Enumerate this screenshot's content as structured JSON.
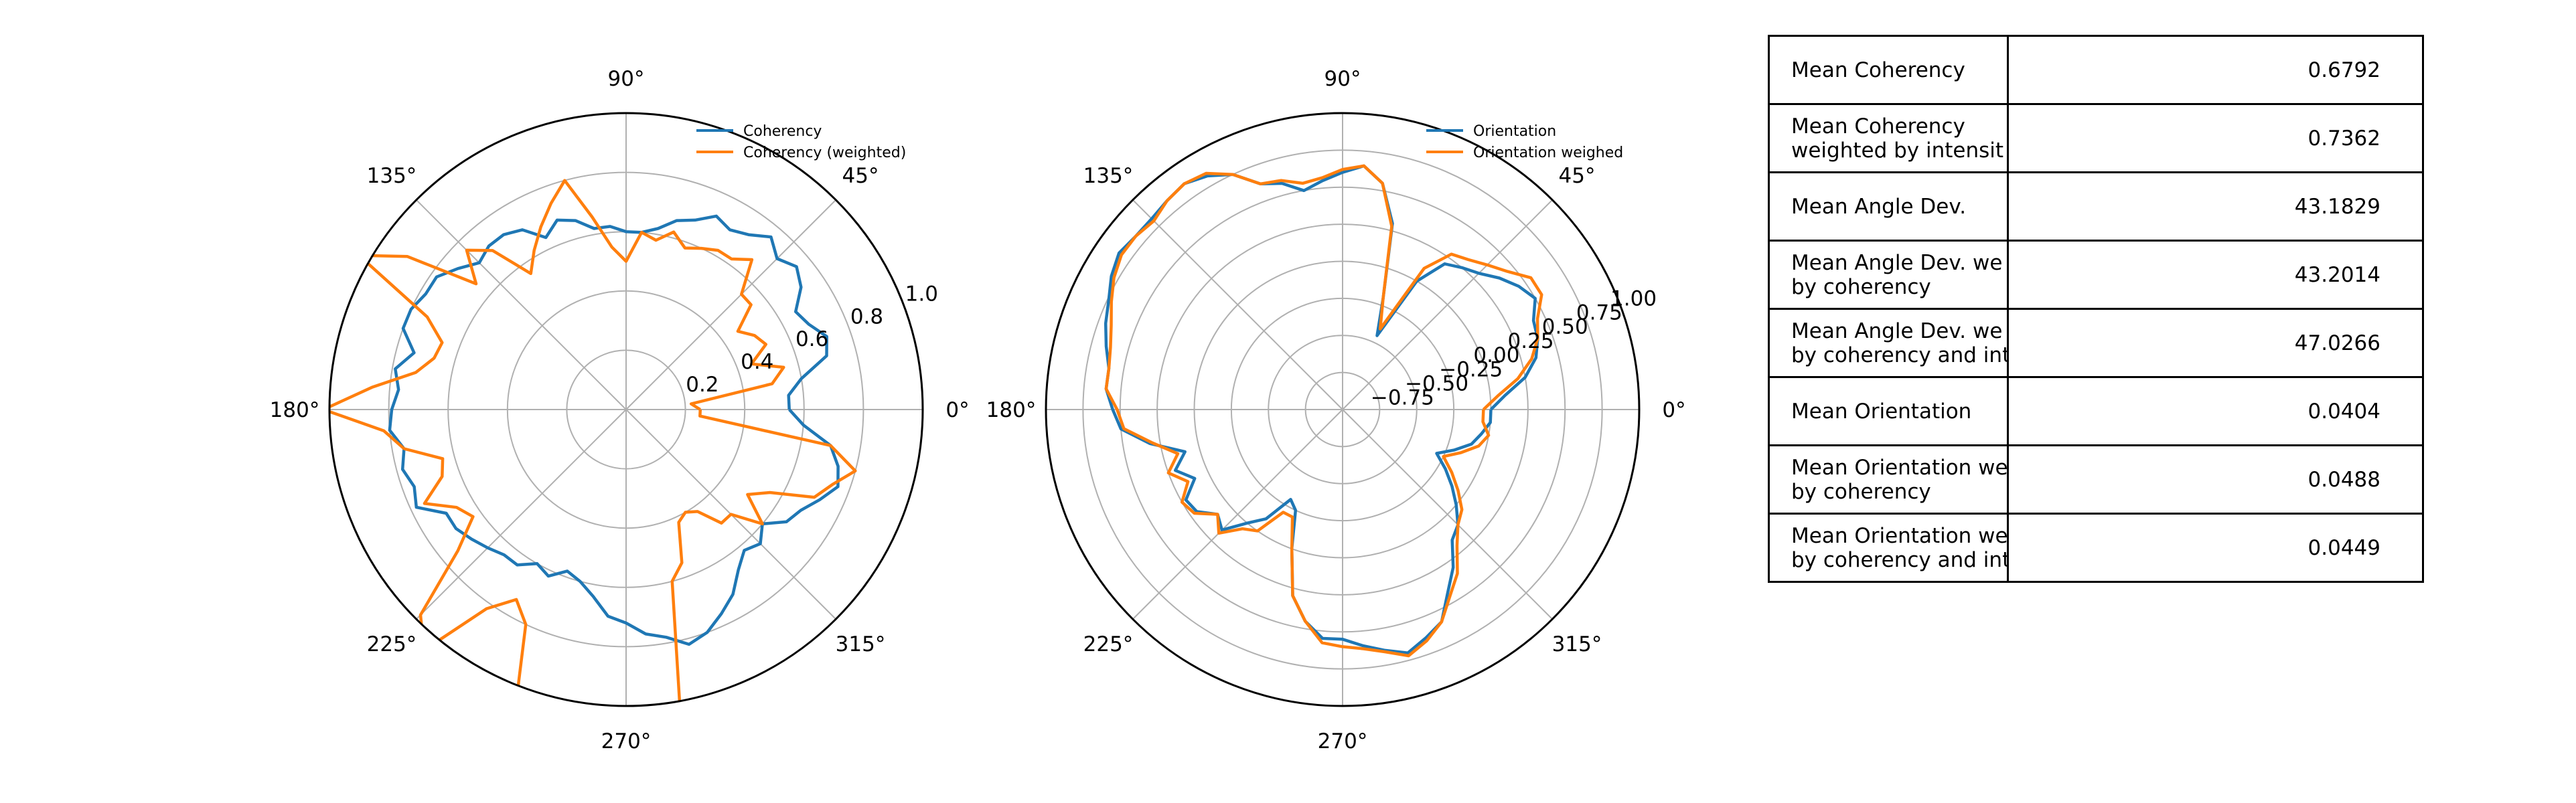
{
  "chart_data": [
    {
      "type": "line",
      "subtype": "polar",
      "title": "",
      "angular_tick_labels": [
        "0°",
        "45°",
        "90°",
        "135°",
        "180°",
        "225°",
        "270°",
        "315°"
      ],
      "radial_tick_labels": [
        "0.2",
        "0.4",
        "0.6",
        "0.8",
        "1.0"
      ],
      "rlim": [
        0,
        1.0
      ],
      "grid": true,
      "legend_position": "top-right",
      "theta_deg": [
        0,
        5,
        10,
        15,
        20,
        25,
        30,
        35,
        40,
        45,
        50,
        55,
        60,
        65,
        70,
        75,
        80,
        85,
        90,
        95,
        100,
        105,
        110,
        115,
        120,
        125,
        130,
        135,
        140,
        145,
        150,
        155,
        160,
        165,
        170,
        175,
        180,
        185,
        190,
        195,
        200,
        205,
        210,
        215,
        220,
        225,
        230,
        235,
        240,
        245,
        250,
        255,
        260,
        265,
        270,
        275,
        280,
        285,
        290,
        295,
        300,
        305,
        310,
        315,
        320,
        325,
        330,
        335,
        340,
        345,
        350,
        355
      ],
      "series": [
        {
          "name": "Coherency",
          "color": "#1f77b4",
          "values": [
            0.55,
            0.55,
            0.6,
            0.7,
            0.72,
            0.68,
            0.66,
            0.72,
            0.75,
            0.72,
            0.76,
            0.72,
            0.7,
            0.72,
            0.68,
            0.66,
            0.62,
            0.6,
            0.6,
            0.62,
            0.62,
            0.66,
            0.68,
            0.64,
            0.7,
            0.72,
            0.72,
            0.7,
            0.74,
            0.78,
            0.78,
            0.8,
            0.8,
            0.74,
            0.79,
            0.77,
            0.79,
            0.8,
            0.76,
            0.78,
            0.76,
            0.78,
            0.7,
            0.7,
            0.68,
            0.66,
            0.64,
            0.64,
            0.6,
            0.62,
            0.58,
            0.6,
            0.64,
            0.7,
            0.72,
            0.76,
            0.78,
            0.82,
            0.8,
            0.76,
            0.72,
            0.66,
            0.62,
            0.64,
            0.6,
            0.66,
            0.68,
            0.72,
            0.76,
            0.74,
            0.7,
            0.6
          ]
        },
        {
          "name": "Coherency (weighted)",
          "color": "#ff7f0e",
          "values": [
            0.25,
            0.22,
            0.5,
            0.55,
            0.45,
            0.52,
            0.5,
            0.46,
            0.55,
            0.55,
            0.66,
            0.62,
            0.62,
            0.6,
            0.58,
            0.62,
            0.58,
            0.6,
            0.5,
            0.55,
            0.66,
            0.8,
            0.74,
            0.68,
            0.62,
            0.56,
            0.7,
            0.76,
            0.66,
            0.9,
            1.04,
            0.74,
            0.66,
            0.67,
            0.72,
            0.86,
            1.02,
            0.82,
            0.76,
            0.64,
            0.66,
            0.75,
            0.66,
            0.63,
            0.74,
            0.98,
            1.06,
            0.82,
            0.74,
            0.8,
            1.1,
            1.16,
            1.08,
            1.06,
            1.02,
            1.04,
            1.06,
            0.6,
            0.55,
            0.42,
            0.4,
            0.42,
            0.5,
            0.5,
            0.6,
            0.5,
            0.56,
            0.7,
            0.74,
            0.8,
            0.7,
            0.25
          ]
        }
      ]
    },
    {
      "type": "line",
      "subtype": "polar",
      "title": "",
      "angular_tick_labels": [
        "0°",
        "45°",
        "90°",
        "135°",
        "180°",
        "225°",
        "270°",
        "315°"
      ],
      "radial_tick_labels": [
        "−0.75",
        "−0.50",
        "−0.25",
        "0.00",
        "0.25",
        "0.50",
        "0.75",
        "1.00"
      ],
      "rlim": [
        -1.0,
        1.0
      ],
      "grid": true,
      "legend_position": "top-right",
      "theta_deg": [
        0,
        5,
        10,
        15,
        20,
        25,
        30,
        35,
        40,
        45,
        50,
        55,
        60,
        65,
        70,
        75,
        80,
        85,
        90,
        95,
        100,
        105,
        110,
        115,
        120,
        125,
        130,
        135,
        140,
        145,
        150,
        155,
        160,
        165,
        170,
        175,
        180,
        185,
        190,
        195,
        200,
        205,
        210,
        215,
        220,
        225,
        230,
        235,
        240,
        245,
        250,
        255,
        260,
        265,
        270,
        275,
        280,
        285,
        290,
        295,
        300,
        305,
        310,
        315,
        320,
        325,
        330,
        335,
        340,
        345,
        350,
        355
      ],
      "series": [
        {
          "name": "Orientation",
          "color": "#1f77b4",
          "values": [
            0.0,
            0.1,
            0.25,
            0.35,
            0.4,
            0.42,
            0.5,
            0.45,
            0.38,
            0.3,
            0.25,
            0.2,
            0.0,
            -0.45,
            -0.2,
            0.3,
            0.55,
            0.65,
            0.6,
            0.55,
            0.5,
            0.58,
            0.62,
            0.75,
            0.82,
            0.86,
            0.84,
            0.82,
            0.82,
            0.84,
            0.8,
            0.74,
            0.7,
            0.65,
            0.6,
            0.6,
            0.55,
            0.5,
            0.32,
            0.1,
            0.2,
            0.1,
            0.22,
            0.2,
            0.1,
            0.15,
            0.0,
            -0.1,
            -0.3,
            -0.25,
            0.0,
            0.3,
            0.45,
            0.55,
            0.55,
            0.6,
            0.65,
            0.7,
            0.64,
            0.58,
            0.42,
            0.3,
            0.15,
            0.1,
            0.0,
            -0.1,
            -0.2,
            -0.3,
            -0.2,
            -0.1,
            -0.05,
            0.0
          ]
        },
        {
          "name": "Orientation weighed",
          "color": "#ff7f0e",
          "values": [
            -0.05,
            0.05,
            0.2,
            0.32,
            0.4,
            0.45,
            0.55,
            0.55,
            0.45,
            0.38,
            0.32,
            0.28,
            0.1,
            -0.4,
            -0.2,
            0.28,
            0.55,
            0.65,
            0.62,
            0.57,
            0.55,
            0.6,
            0.62,
            0.75,
            0.84,
            0.86,
            0.84,
            0.8,
            0.82,
            0.82,
            0.78,
            0.72,
            0.66,
            0.62,
            0.6,
            0.6,
            0.52,
            0.48,
            0.3,
            0.15,
            0.25,
            0.15,
            0.25,
            0.22,
            0.1,
            0.18,
            0.05,
            0.0,
            -0.2,
            -0.2,
            0.0,
            0.3,
            0.45,
            0.58,
            0.6,
            0.62,
            0.66,
            0.72,
            0.66,
            0.58,
            0.45,
            0.35,
            0.2,
            0.1,
            0.05,
            -0.05,
            -0.15,
            -0.25,
            -0.15,
            -0.05,
            0.0,
            -0.05
          ]
        }
      ]
    },
    {
      "type": "table",
      "rows": [
        {
          "label": "Mean Coherency",
          "value": "0.6792"
        },
        {
          "label": "Mean Coherency\nweighted by intensit",
          "value": "0.7362"
        },
        {
          "label": "Mean Angle Dev.",
          "value": "43.1829"
        },
        {
          "label": "Mean Angle Dev. we\nby coherency",
          "value": "43.2014"
        },
        {
          "label": "Mean Angle Dev. we\nby coherency and int",
          "value": "47.0266"
        },
        {
          "label": "Mean Orientation",
          "value": "0.0404"
        },
        {
          "label": "Mean Orientation we\nby coherency",
          "value": "0.0488"
        },
        {
          "label": "Mean Orientation we\nby coherency and int",
          "value": "0.0449"
        }
      ]
    }
  ]
}
